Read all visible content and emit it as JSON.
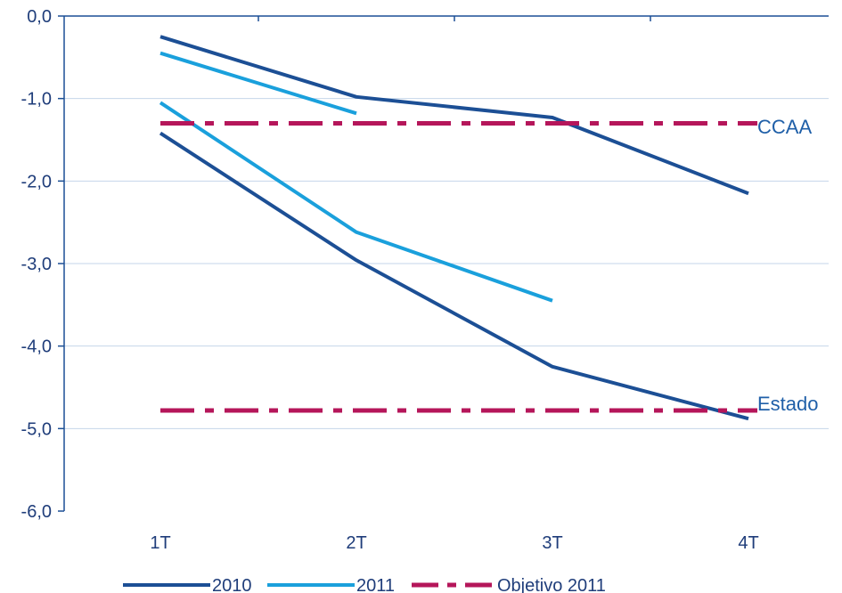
{
  "chart_data": {
    "type": "line",
    "categories": [
      "1T",
      "2T",
      "3T",
      "4T"
    ],
    "ylim": [
      -6.0,
      0.0
    ],
    "y_ticks": [
      "0,0",
      "-1,0",
      "-2,0",
      "-3,0",
      "-4,0",
      "-5,0",
      "-6,0"
    ],
    "grid": "horizontal",
    "series": [
      {
        "name": "2010",
        "group": "CCAA",
        "color": "#1c4f95",
        "values": [
          -0.25,
          -0.98,
          -1.23,
          -2.15
        ]
      },
      {
        "name": "2010",
        "group": "Estado",
        "color": "#1c4f95",
        "values": [
          -1.42,
          -2.96,
          -4.25,
          -4.88
        ]
      },
      {
        "name": "2011",
        "group": "CCAA",
        "color": "#1aa0dc",
        "values": [
          -0.45,
          -1.18,
          null,
          null
        ]
      },
      {
        "name": "2011",
        "group": "Estado",
        "color": "#1aa0dc",
        "values": [
          -1.05,
          -2.62,
          -3.45,
          null
        ]
      },
      {
        "name": "Objetivo 2011",
        "group": "CCAA",
        "color": "#b5165a",
        "dashed": true,
        "values": [
          -1.3,
          -1.3,
          -1.3,
          -1.3
        ]
      },
      {
        "name": "Objetivo 2011",
        "group": "Estado",
        "color": "#b5165a",
        "dashed": true,
        "values": [
          -4.78,
          -4.78,
          -4.78,
          -4.78
        ]
      }
    ],
    "annotations": [
      "CCAA",
      "Estado"
    ],
    "legend": {
      "position": "bottom",
      "entries": [
        {
          "label": "2010",
          "color": "#1c4f95",
          "dashed": false
        },
        {
          "label": "2011",
          "color": "#1aa0dc",
          "dashed": false
        },
        {
          "label": "Objetivo 2011",
          "color": "#b5165a",
          "dashed": true
        }
      ]
    }
  }
}
